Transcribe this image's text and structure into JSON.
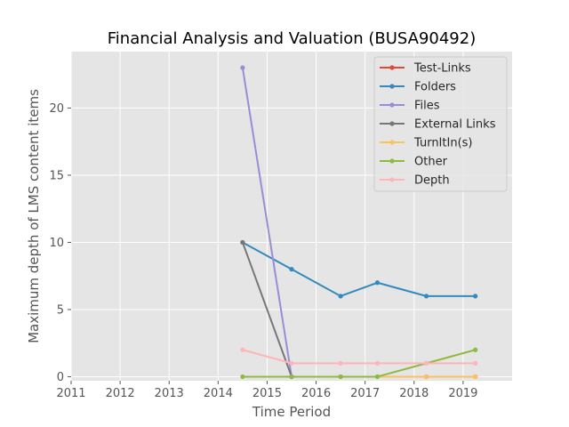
{
  "chart_data": {
    "type": "line",
    "title": "Financial Analysis and Valuation (BUSA90492)",
    "xlabel": "Time Period",
    "ylabel": "Maximum depth of LMS content items",
    "xlim": [
      2011,
      2020
    ],
    "ylim": [
      -0.3,
      24.2
    ],
    "xticks": [
      "2011",
      "2012",
      "2013",
      "2014",
      "2015",
      "2016",
      "2017",
      "2018",
      "2019"
    ],
    "yticks": [
      "0",
      "5",
      "10",
      "15",
      "20"
    ],
    "grid": true,
    "legend_position": "top-right",
    "x": [
      2014.5,
      2015.5,
      2016.5,
      2017.25,
      2018.25,
      2019.25
    ],
    "series": [
      {
        "name": "Test-Links",
        "color": "#E24A33",
        "values": [
          null,
          0,
          0,
          0,
          0,
          0
        ]
      },
      {
        "name": "Folders",
        "color": "#348ABD",
        "values": [
          10,
          8,
          6,
          7,
          6,
          6
        ]
      },
      {
        "name": "Files",
        "color": "#988ED5",
        "values": [
          23,
          0,
          null,
          null,
          null,
          null
        ]
      },
      {
        "name": "External Links",
        "color": "#777777",
        "values": [
          10,
          0,
          null,
          null,
          null,
          null
        ]
      },
      {
        "name": "TurnItIn(s)",
        "color": "#FBC15E",
        "values": [
          null,
          null,
          null,
          0,
          0,
          0
        ]
      },
      {
        "name": "Other",
        "color": "#8EBA42",
        "values": [
          0,
          0,
          0,
          0,
          1,
          2
        ]
      },
      {
        "name": "Depth",
        "color": "#FFB5B8",
        "values": [
          2,
          1,
          1,
          1,
          1,
          1
        ]
      }
    ]
  }
}
